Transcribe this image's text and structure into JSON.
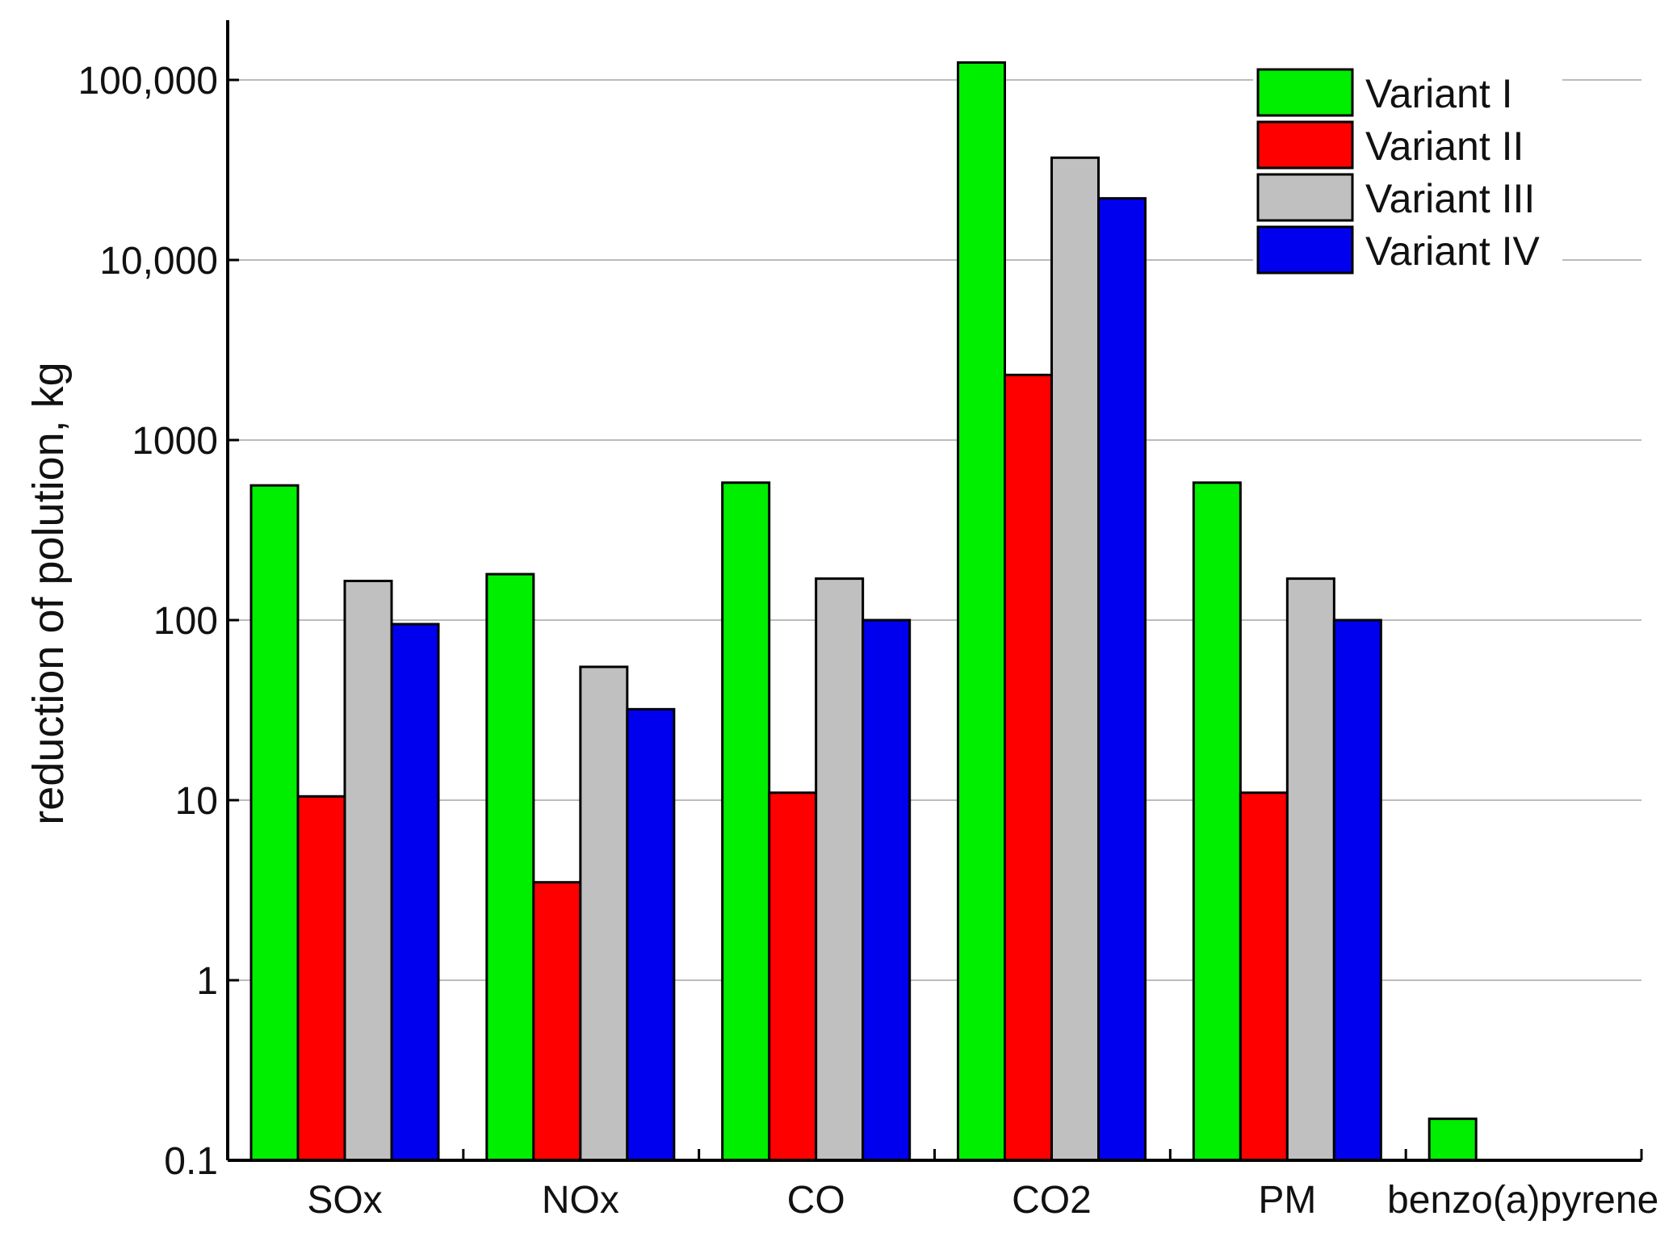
{
  "chart_data": {
    "type": "bar",
    "title": "",
    "xlabel": "",
    "ylabel": "reduction of polution, kg",
    "yscale": "log",
    "ylim": [
      0.1,
      200000
    ],
    "yticks": [
      0.1,
      1,
      10,
      100,
      1000,
      10000,
      100000
    ],
    "ytick_labels": [
      "0.1",
      "1",
      "10",
      "100",
      "1000",
      "10,000",
      "100,000"
    ],
    "grid": true,
    "legend_position": "top-right",
    "categories": [
      "SOx",
      "NOx",
      "CO",
      "CO2",
      "PM",
      "benzo(a)pyrene"
    ],
    "series": [
      {
        "name": "Variant I",
        "color": "#00ee00",
        "values": [
          560,
          180,
          580,
          125000,
          580,
          0.17
        ]
      },
      {
        "name": "Variant  II",
        "color": "#ff0000",
        "values": [
          10.5,
          3.5,
          11,
          2300,
          11,
          null
        ]
      },
      {
        "name": "Variant III",
        "color": "#c0c0c0",
        "values": [
          165,
          55,
          170,
          37000,
          170,
          null
        ]
      },
      {
        "name": "Variant IV",
        "color": "#0000ee",
        "values": [
          95,
          32,
          100,
          22000,
          100,
          null
        ]
      }
    ]
  }
}
